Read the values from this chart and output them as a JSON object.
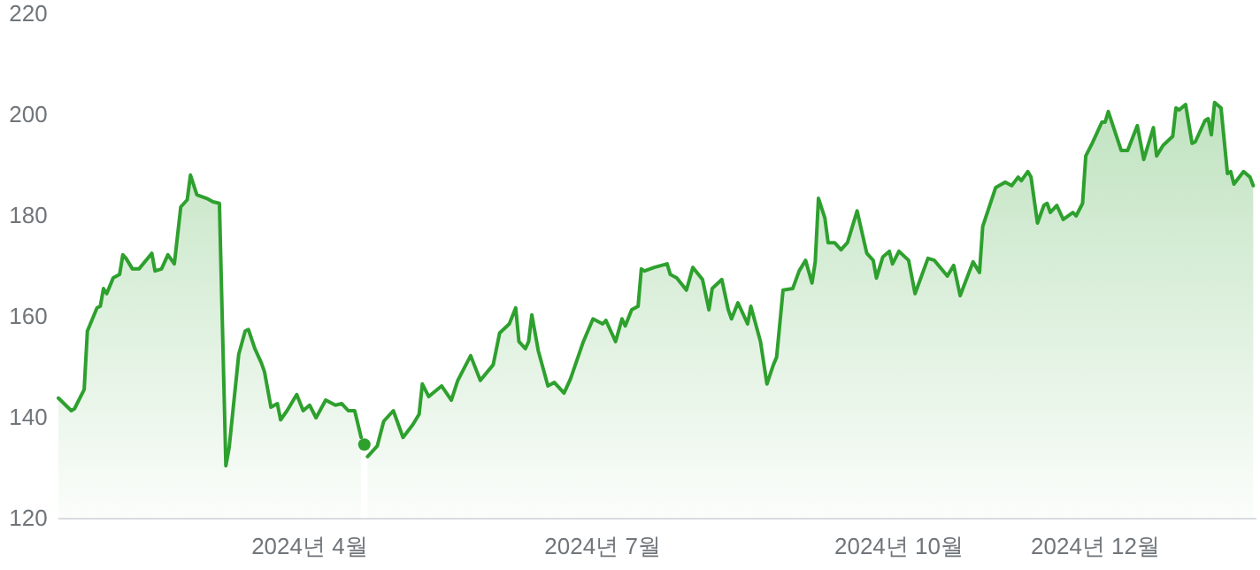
{
  "chart_data": {
    "type": "area",
    "xlim": [
      "2024-01-14",
      "2025-01-20"
    ],
    "ylim": [
      120,
      220
    ],
    "xticks": [
      {
        "value": "2024-04-01",
        "label": "2024년 4월"
      },
      {
        "value": "2024-07-01",
        "label": "2024년 7월"
      },
      {
        "value": "2024-10-01",
        "label": "2024년 10월"
      },
      {
        "value": "2024-12-01",
        "label": "2024년 12월"
      }
    ],
    "yticks": [
      120,
      140,
      160,
      180,
      200,
      220
    ],
    "series": [
      {
        "color": "#2ea02e",
        "x": [
          "2024-01-14",
          "2024-01-18",
          "2024-01-19",
          "2024-01-22",
          "2024-01-23",
          "2024-01-26",
          "2024-01-27",
          "2024-01-28",
          "2024-01-29",
          "2024-01-31",
          "2024-02-02",
          "2024-02-03",
          "2024-02-04",
          "2024-02-06",
          "2024-02-08",
          "2024-02-12",
          "2024-02-13",
          "2024-02-15",
          "2024-02-17",
          "2024-02-19",
          "2024-02-21",
          "2024-02-23",
          "2024-02-24",
          "2024-02-26",
          "2024-02-29",
          "2024-03-02",
          "2024-03-04",
          "2024-03-06",
          "2024-03-07",
          "2024-03-10",
          "2024-03-12",
          "2024-03-13",
          "2024-03-15",
          "2024-03-17",
          "2024-03-18",
          "2024-03-20",
          "2024-03-22",
          "2024-03-23",
          "2024-03-25",
          "2024-03-28",
          "2024-03-30",
          "2024-04-01",
          "2024-04-03",
          "2024-04-06",
          "2024-04-09",
          "2024-04-11",
          "2024-04-13",
          "2024-04-15",
          "2024-04-17",
          "2024-04-18",
          "2024-04-19",
          "2024-04-22",
          "2024-04-24",
          "2024-04-27",
          "2024-04-30",
          "2024-05-03",
          "2024-05-05",
          "2024-05-06",
          "2024-05-08",
          "2024-05-12",
          "2024-05-15",
          "2024-05-17",
          "2024-05-21",
          "2024-05-24",
          "2024-05-28",
          "2024-05-30",
          "2024-06-02",
          "2024-06-04",
          "2024-06-05",
          "2024-06-07",
          "2024-06-08",
          "2024-06-09",
          "2024-06-11",
          "2024-06-14",
          "2024-06-16",
          "2024-06-19",
          "2024-06-21",
          "2024-06-25",
          "2024-06-28",
          "2024-07-01",
          "2024-07-02",
          "2024-07-05",
          "2024-07-07",
          "2024-07-08",
          "2024-07-10",
          "2024-07-12",
          "2024-07-13",
          "2024-07-14",
          "2024-07-17",
          "2024-07-21",
          "2024-07-22",
          "2024-07-24",
          "2024-07-27",
          "2024-07-29",
          "2024-08-01",
          "2024-08-03",
          "2024-08-04",
          "2024-08-07",
          "2024-08-09",
          "2024-08-10",
          "2024-08-12",
          "2024-08-15",
          "2024-08-16",
          "2024-08-19",
          "2024-08-21",
          "2024-08-23",
          "2024-08-24",
          "2024-08-26",
          "2024-08-29",
          "2024-08-31",
          "2024-09-02",
          "2024-09-04",
          "2024-09-05",
          "2024-09-06",
          "2024-09-08",
          "2024-09-09",
          "2024-09-11",
          "2024-09-13",
          "2024-09-15",
          "2024-09-18",
          "2024-09-21",
          "2024-09-23",
          "2024-09-24",
          "2024-09-26",
          "2024-09-28",
          "2024-09-29",
          "2024-10-01",
          "2024-10-04",
          "2024-10-06",
          "2024-10-10",
          "2024-10-12",
          "2024-10-16",
          "2024-10-18",
          "2024-10-20",
          "2024-10-24",
          "2024-10-26",
          "2024-10-27",
          "2024-10-31",
          "2024-11-03",
          "2024-11-05",
          "2024-11-07",
          "2024-11-08",
          "2024-11-10",
          "2024-11-11",
          "2024-11-13",
          "2024-11-15",
          "2024-11-16",
          "2024-11-17",
          "2024-11-19",
          "2024-11-21",
          "2024-11-24",
          "2024-11-25",
          "2024-11-27",
          "2024-11-28",
          "2024-11-30",
          "2024-12-03",
          "2024-12-04",
          "2024-12-05",
          "2024-12-09",
          "2024-12-11",
          "2024-12-14",
          "2024-12-16",
          "2024-12-19",
          "2024-12-20",
          "2024-12-22",
          "2024-12-25",
          "2024-12-26",
          "2024-12-27",
          "2024-12-29",
          "2024-12-31",
          "2025-01-01",
          "2025-01-04",
          "2025-01-05",
          "2025-01-06",
          "2025-01-07",
          "2025-01-09",
          "2025-01-11",
          "2025-01-12",
          "2025-01-13",
          "2025-01-16",
          "2025-01-18",
          "2025-01-19"
        ],
        "values": [
          143.9,
          141.4,
          141.8,
          145.6,
          157.2,
          161.8,
          162.1,
          165.6,
          164.6,
          167.7,
          168.4,
          172.3,
          171.6,
          169.5,
          169.5,
          172.6,
          169.1,
          169.5,
          172.3,
          170.5,
          181.8,
          183.2,
          188.1,
          184.2,
          183.5,
          182.8,
          182.5,
          130.5,
          134,
          152.6,
          157.2,
          157.5,
          153.7,
          150.9,
          149.1,
          142.1,
          142.8,
          139.6,
          141.4,
          144.6,
          141.4,
          142.5,
          140,
          143.5,
          142.5,
          142.8,
          141.4,
          141.4,
          136.1,
          null,
          132.3,
          134.4,
          139.3,
          141.4,
          136.1,
          138.6,
          140.7,
          146.7,
          144.2,
          146.3,
          143.5,
          147.4,
          152.3,
          147.4,
          150.5,
          156.8,
          158.6,
          161.8,
          155.1,
          153.7,
          155.1,
          160.4,
          153.3,
          146.3,
          147,
          144.9,
          147.7,
          155.1,
          159.6,
          158.6,
          159.3,
          155.1,
          159.6,
          158.2,
          161.4,
          162.1,
          169.5,
          169.1,
          169.8,
          170.5,
          168.4,
          167.7,
          165.3,
          169.8,
          167.4,
          161.4,
          165.6,
          167.4,
          161.4,
          159.6,
          162.8,
          158.6,
          162.1,
          155.1,
          146.7,
          150.5,
          152,
          165.3,
          165.6,
          169.1,
          171.2,
          166.7,
          170.9,
          183.5,
          179.6,
          174.7,
          174.7,
          173.3,
          174.7,
          181,
          172.6,
          171.2,
          167.7,
          171.9,
          173,
          170.5,
          173,
          171.2,
          164.6,
          171.6,
          171.2,
          168.1,
          170.2,
          164.2,
          170.9,
          168.8,
          177.9,
          185.6,
          186.7,
          186,
          187.7,
          187,
          188.8,
          187.7,
          178.6,
          182.1,
          182.5,
          180.7,
          182.1,
          179.3,
          180.7,
          180,
          182.5,
          191.9,
          194.4,
          198.6,
          198.6,
          200.7,
          193,
          193,
          197.9,
          191.2,
          197.5,
          191.9,
          194,
          195.8,
          201.4,
          201,
          202.1,
          194.4,
          194.7,
          198.9,
          199.3,
          196.1,
          202.5,
          201.4,
          188.4,
          188.8,
          186.3,
          188.8,
          187.7,
          186
        ]
      },
      {
        "type": "scatter",
        "color": "#2ea02e",
        "x": [
          "2024-04-18"
        ],
        "values": [
          134.7
        ]
      }
    ]
  }
}
